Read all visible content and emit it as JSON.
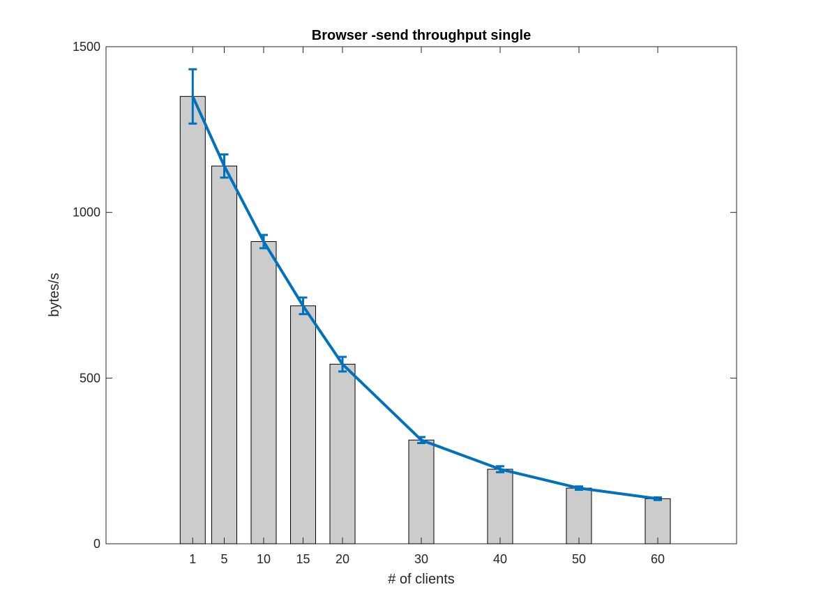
{
  "chart_data": {
    "type": "bar",
    "title": "Browser -send throughput single",
    "xlabel": "# of clients",
    "ylabel": "bytes/s",
    "x": [
      1,
      5,
      10,
      15,
      20,
      30,
      40,
      50,
      60
    ],
    "xlim": [
      -10,
      70
    ],
    "ylim": [
      0,
      1500
    ],
    "yticks": [
      0,
      500,
      1000,
      1500
    ],
    "grid": false,
    "bar_values": [
      1350,
      1140,
      912,
      718,
      542,
      313,
      225,
      168,
      136
    ],
    "line_values": [
      1350,
      1140,
      912,
      718,
      542,
      313,
      225,
      168,
      136
    ],
    "error": [
      82,
      35,
      20,
      25,
      22,
      9,
      9,
      5,
      4
    ],
    "colors": {
      "bar_fill": "#cccccc",
      "bar_edge": "#000000",
      "line": "#0072bd"
    }
  }
}
